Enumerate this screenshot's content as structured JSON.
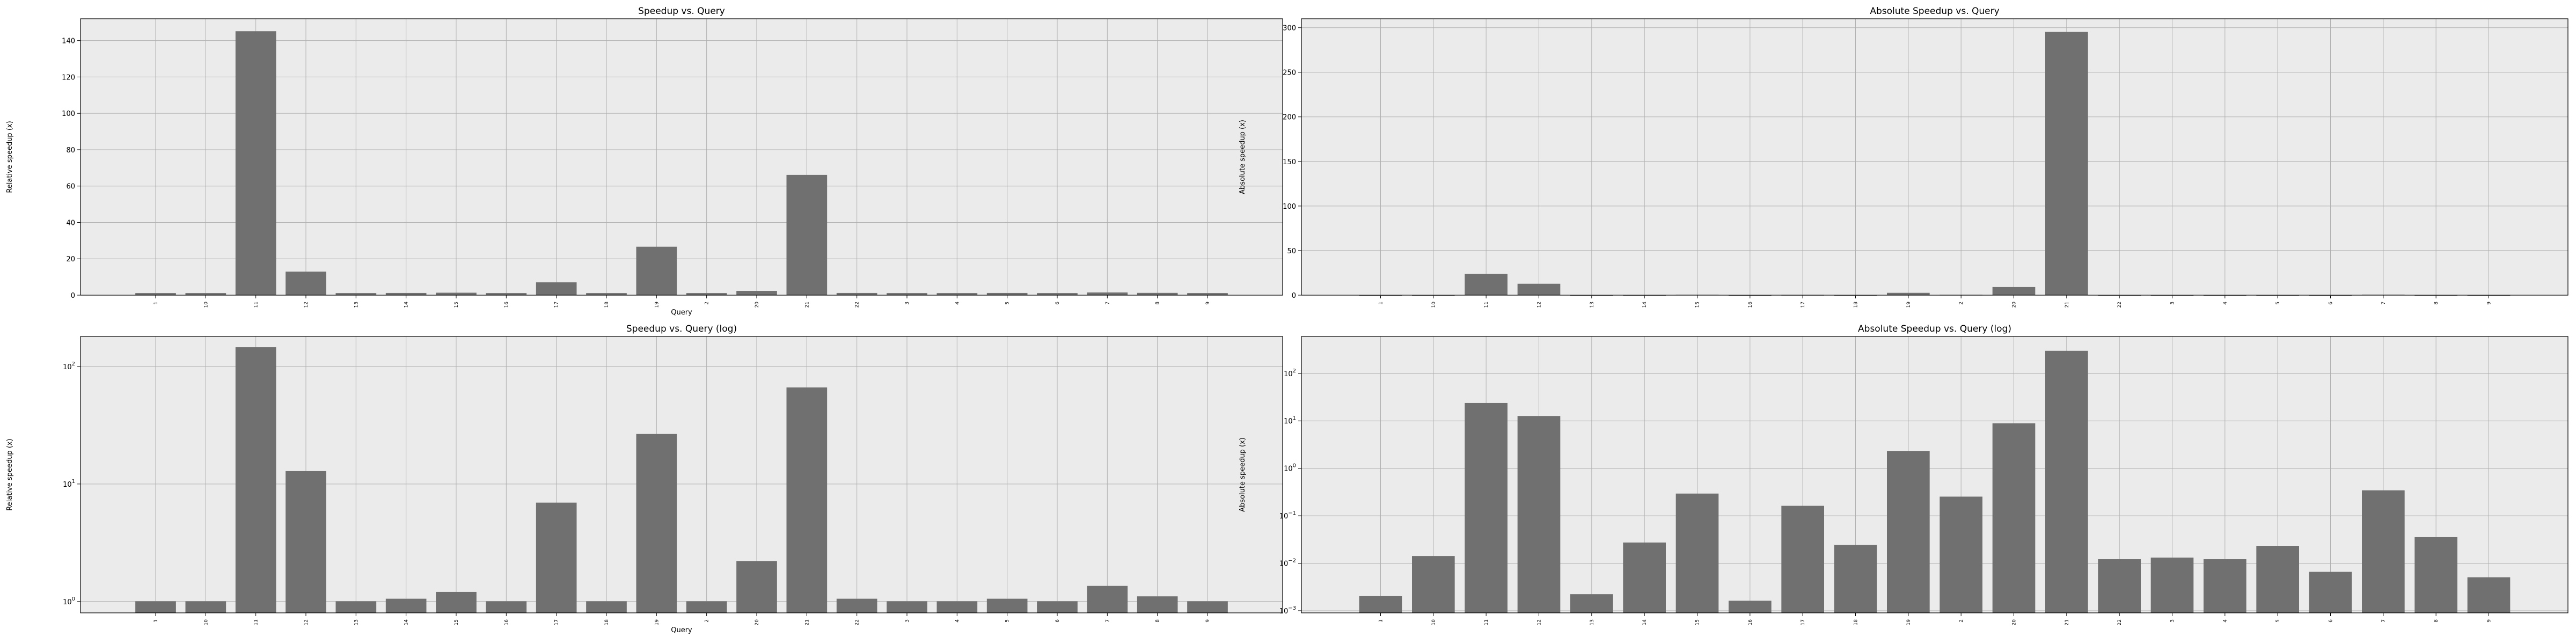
{
  "chart_data": [
    {
      "type": "bar",
      "title": "Speedup vs. Query",
      "xlabel": "Query",
      "ylabel": "Relative speedup (x)",
      "yscale": "linear",
      "ylim": [
        0,
        152
      ],
      "yticks": [
        0,
        20,
        40,
        60,
        80,
        100,
        120,
        140
      ],
      "ytick_labels": [
        "0",
        "20",
        "40",
        "60",
        "80",
        "100",
        "120",
        "140"
      ],
      "grid": true,
      "bar_color": "#707070",
      "background": "#ebebeb",
      "categories": [
        "1",
        "10",
        "11",
        "12",
        "13",
        "14",
        "15",
        "16",
        "17",
        "18",
        "19",
        "2",
        "20",
        "21",
        "22",
        "3",
        "4",
        "5",
        "6",
        "7",
        "8",
        "9"
      ],
      "values": [
        1.0,
        1.0,
        145.0,
        12.8,
        1.0,
        1.05,
        1.2,
        1.0,
        6.9,
        1.0,
        26.5,
        1.0,
        2.2,
        66.0,
        1.05,
        1.0,
        1.0,
        1.05,
        1.0,
        1.35,
        1.1,
        1.0
      ]
    },
    {
      "type": "bar",
      "title": "Absolute Speedup vs. Query",
      "xlabel": "",
      "ylabel": "Absolute speedup (x)",
      "yscale": "linear",
      "ylim": [
        0,
        310
      ],
      "yticks": [
        0,
        50,
        100,
        150,
        200,
        250,
        300
      ],
      "ytick_labels": [
        "0",
        "50",
        "100",
        "150",
        "200",
        "250",
        "300"
      ],
      "grid": true,
      "bar_color": "#707070",
      "background": "#ebebeb",
      "categories": [
        "1",
        "10",
        "11",
        "12",
        "13",
        "14",
        "15",
        "16",
        "17",
        "18",
        "19",
        "2",
        "20",
        "21",
        "22",
        "3",
        "4",
        "5",
        "6",
        "7",
        "8",
        "9"
      ],
      "values": [
        0.002,
        0.014,
        23.5,
        12.5,
        0.0022,
        0.027,
        0.29,
        0.0016,
        0.16,
        0.024,
        2.3,
        0.25,
        8.8,
        295.0,
        0.012,
        0.013,
        0.012,
        0.023,
        0.0065,
        0.34,
        0.035,
        0.005
      ]
    },
    {
      "type": "bar",
      "title": "Speedup vs. Query (log)",
      "xlabel": "Query",
      "ylabel": "Relative speedup (x)",
      "yscale": "log",
      "ylim": [
        0.8,
        180
      ],
      "yticks": [
        1,
        10,
        100
      ],
      "ytick_base": [
        "10",
        "10",
        "10"
      ],
      "ytick_exp": [
        "0",
        "1",
        "2"
      ],
      "grid": true,
      "bar_color": "#707070",
      "background": "#ebebeb",
      "categories": [
        "1",
        "10",
        "11",
        "12",
        "13",
        "14",
        "15",
        "16",
        "17",
        "18",
        "19",
        "2",
        "20",
        "21",
        "22",
        "3",
        "4",
        "5",
        "6",
        "7",
        "8",
        "9"
      ],
      "values": [
        1.0,
        1.0,
        145.0,
        12.8,
        1.0,
        1.05,
        1.2,
        1.0,
        6.9,
        1.0,
        26.5,
        1.0,
        2.2,
        66.0,
        1.05,
        1.0,
        1.0,
        1.05,
        1.0,
        1.35,
        1.1,
        1.0
      ]
    },
    {
      "type": "bar",
      "title": "Absolute Speedup vs. Query (log)",
      "xlabel": "",
      "ylabel": "Absolute speedup (x)",
      "yscale": "log",
      "ylim": [
        0.0009,
        600
      ],
      "yticks": [
        0.001,
        0.01,
        0.1,
        1,
        10,
        100
      ],
      "ytick_base": [
        "10",
        "10",
        "10",
        "10",
        "10",
        "10"
      ],
      "ytick_exp": [
        "−3",
        "−2",
        "−1",
        "0",
        "1",
        "2"
      ],
      "grid": true,
      "bar_color": "#707070",
      "background": "#ebebeb",
      "categories": [
        "1",
        "10",
        "11",
        "12",
        "13",
        "14",
        "15",
        "16",
        "17",
        "18",
        "19",
        "2",
        "20",
        "21",
        "22",
        "3",
        "4",
        "5",
        "6",
        "7",
        "8",
        "9"
      ],
      "values": [
        0.002,
        0.014,
        23.5,
        12.5,
        0.0022,
        0.027,
        0.29,
        0.0016,
        0.16,
        0.024,
        2.3,
        0.25,
        8.8,
        295.0,
        0.012,
        0.013,
        0.012,
        0.023,
        0.0065,
        0.34,
        0.035,
        0.005
      ]
    }
  ]
}
